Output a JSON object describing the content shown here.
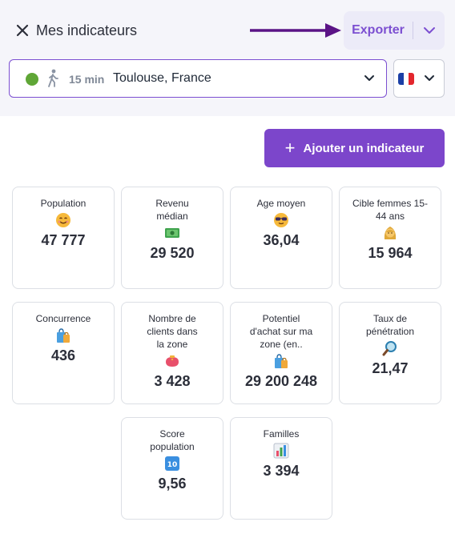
{
  "header": {
    "title": "Mes indicateurs",
    "export_label": "Exporter"
  },
  "location": {
    "minutes": "15 min",
    "city": "Toulouse, France",
    "status_color": "#5fa636"
  },
  "add_button": {
    "label": "Ajouter un indicateur"
  },
  "colors": {
    "accent": "#7c46cb"
  },
  "cards": [
    {
      "label": "Population",
      "value": "47 777",
      "icon": "smiling-face-icon"
    },
    {
      "label": "Revenu médian",
      "value": "29 520",
      "icon": "banknote-icon"
    },
    {
      "label": "Age moyen",
      "value": "36,04",
      "icon": "sunglasses-face-icon"
    },
    {
      "label": "Cible femmes 15-44 ans",
      "value": "15 964",
      "icon": "woman-icon"
    },
    {
      "label": "Concurrence",
      "value": "436",
      "icon": "shopping-bags-icon"
    },
    {
      "label": "Nombre de clients dans la zone",
      "value": "3 428",
      "icon": "purse-icon"
    },
    {
      "label": "Potentiel d'achat sur ma zone (en..",
      "value": "29 200 248",
      "icon": "shopping-bags-icon"
    },
    {
      "label": "Taux de pénétration",
      "value": "21,47",
      "icon": "magnifier-icon"
    },
    {
      "label": "Score population",
      "value": "9,56",
      "icon": "keycap-ten-icon"
    },
    {
      "label": "Familles",
      "value": "3 394",
      "icon": "bar-chart-icon"
    }
  ]
}
